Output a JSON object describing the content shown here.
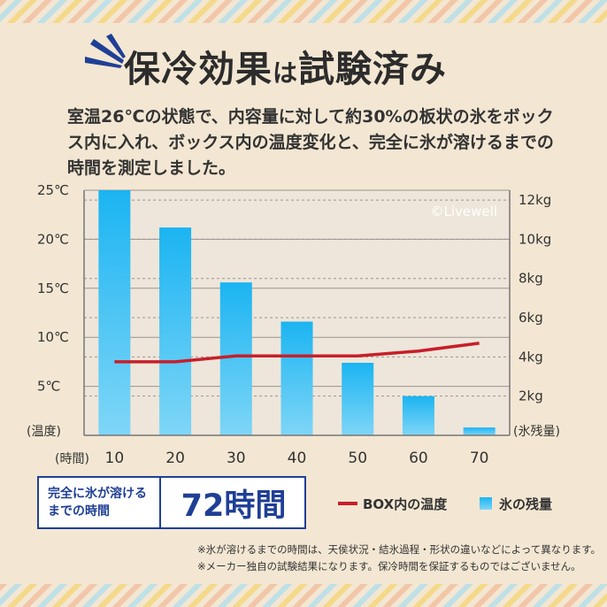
{
  "title": {
    "main": "保冷効果",
    "particle": "は",
    "rest": "試験済み"
  },
  "description": "室温26℃の状態で、内容量に対して約30%の板状の氷をボックス内に入れ、ボックス内の温度変化と、完全に氷が溶けるまでの時間を測定しました。",
  "watermark": "©Livewell",
  "colors": {
    "background": "#f3e7d3",
    "bar": "#1bb4f2",
    "temperature_line": "#c81e2a",
    "accent": "#1f3f96"
  },
  "chart_data": {
    "type": "bar",
    "categories": [
      "10",
      "20",
      "30",
      "40",
      "50",
      "60",
      "70"
    ],
    "x_label": "時間",
    "left_axis": {
      "label": "温度",
      "ticks": [
        "5℃",
        "10℃",
        "15℃",
        "20℃",
        "25℃"
      ],
      "range": [
        0,
        25
      ]
    },
    "right_axis": {
      "label": "氷残量",
      "ticks": [
        "2kg",
        "4kg",
        "6kg",
        "8kg",
        "10kg",
        "12kg"
      ],
      "range": [
        0,
        12.5
      ]
    },
    "series": [
      {
        "name": "氷の残量",
        "type": "bar",
        "axis": "right",
        "unit": "kg",
        "values": [
          12.5,
          10.6,
          7.8,
          5.8,
          3.7,
          2.0,
          0.4
        ]
      },
      {
        "name": "BOX内の温度",
        "type": "line",
        "axis": "left",
        "unit": "℃",
        "values": [
          7.5,
          7.5,
          8.1,
          8.1,
          8.1,
          8.6,
          9.4
        ]
      }
    ],
    "grid": true,
    "legend": "bottom-right"
  },
  "footer": {
    "label": "完全に氷が溶けるまでの時間",
    "value": "72時間"
  },
  "legend": {
    "temperature": "BOX内の温度",
    "ice": "氷の残量"
  },
  "notes": [
    "※氷が溶けるまでの時間は、天侯状況・結氷過程・形状の違いなどによって異なります。",
    "※メーカー独自の試験結果になります。保冷時間を保証するものではございません。"
  ]
}
